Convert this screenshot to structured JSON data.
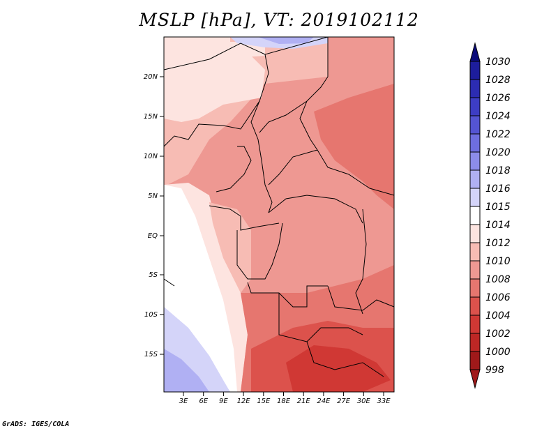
{
  "title": "MSLP [hPa], VT: 2019102112",
  "credit": "GrADS: IGES/COLA",
  "map": {
    "lat_labels": [
      "20N",
      "15N",
      "10N",
      "5N",
      "EQ",
      "5S",
      "10S",
      "15S"
    ],
    "lon_labels": [
      "3E",
      "6E",
      "9E",
      "12E",
      "15E",
      "18E",
      "21E",
      "24E",
      "27E",
      "30E",
      "33E"
    ]
  },
  "colorbar": {
    "levels": [
      "1030",
      "1028",
      "1026",
      "1024",
      "1022",
      "1020",
      "1018",
      "1016",
      "1015",
      "1014",
      "1012",
      "1010",
      "1008",
      "1006",
      "1004",
      "1002",
      "1000",
      "998"
    ],
    "colors": [
      "#0c0c7a",
      "#1d1d9c",
      "#2c2cb2",
      "#3d3dc4",
      "#5454d3",
      "#6e6ee0",
      "#8c8cea",
      "#b0b0f3",
      "#d4d4f9",
      "#ffffff",
      "#fde4e0",
      "#f7bcb4",
      "#ee9892",
      "#e6766f",
      "#dc524c",
      "#d03834",
      "#bd2725",
      "#a0191a"
    ]
  }
}
